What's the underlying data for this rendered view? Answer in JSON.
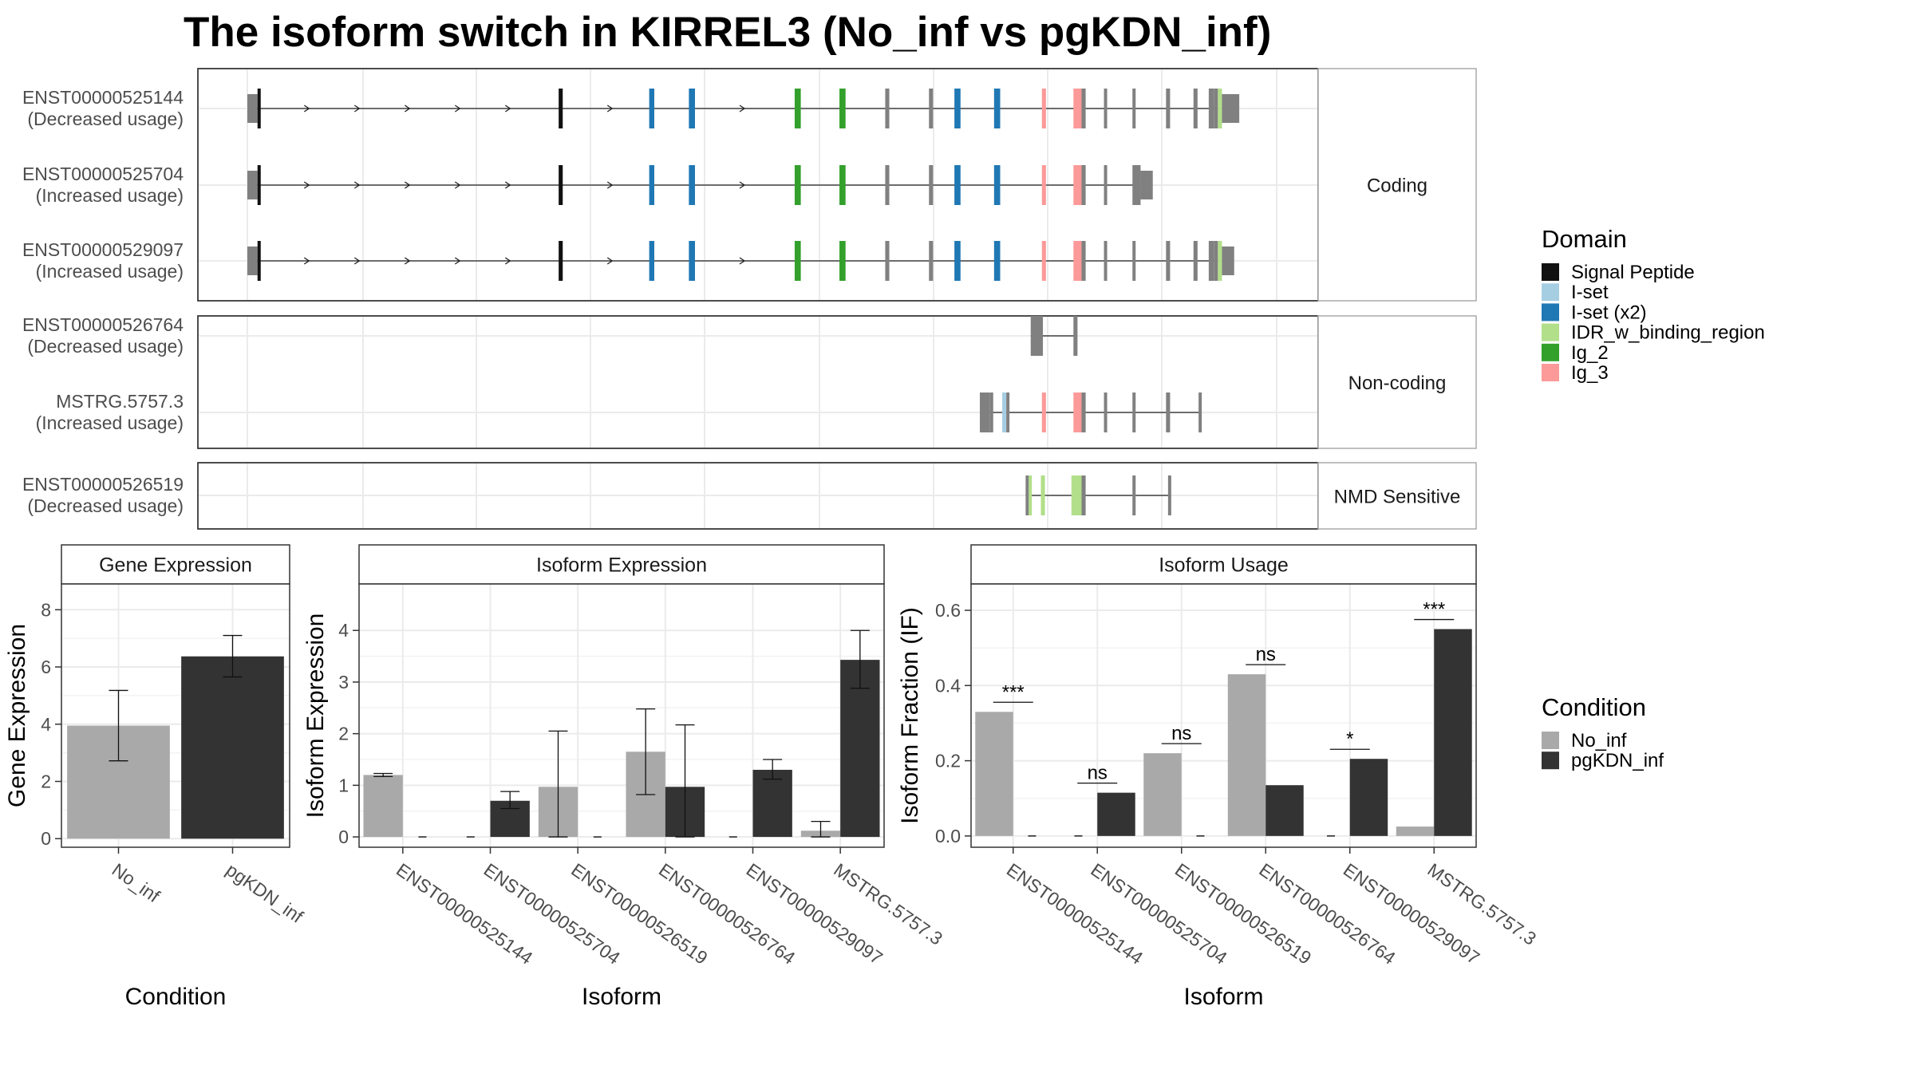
{
  "title": "The isoform switch in KIRREL3 (No_inf vs pgKDN_inf)",
  "colors": {
    "Signal Peptide": "#111111",
    "I-set": "#a6cee3",
    "I-set (x2)": "#1f78b4",
    "IDR_w_binding_region": "#b2df8a",
    "Ig_2": "#33a02c",
    "Ig_3": "#fb9a99",
    "exon": "#808080",
    "No_inf": "#a9a9a9",
    "pgKDN_inf": "#333333"
  },
  "legend_domain": {
    "title": "Domain",
    "entries": [
      "Signal Peptide",
      "I-set",
      "I-set (x2)",
      "IDR_w_binding_region",
      "Ig_2",
      "Ig_3"
    ]
  },
  "legend_condition": {
    "title": "Condition",
    "entries": [
      "No_inf",
      "pgKDN_inf"
    ]
  },
  "transcripts": {
    "groups": [
      {
        "label": "Coding",
        "tracks": [
          {
            "name": "ENST00000525144",
            "usage": "(Decreased usage)",
            "line": [
              0.005,
              0.97
            ],
            "exons": [
              {
                "s": 0.0,
                "e": 0.01,
                "t": "utr"
              },
              {
                "s": 0.01,
                "e": 0.012,
                "t": "Signal Peptide"
              },
              {
                "s": 0.306,
                "e": 0.31,
                "t": "Signal Peptide"
              },
              {
                "s": 0.395,
                "e": 0.4,
                "t": "I-set (x2)"
              },
              {
                "s": 0.434,
                "e": 0.44,
                "t": "I-set (x2)"
              },
              {
                "s": 0.538,
                "e": 0.544,
                "t": "Ig_2"
              },
              {
                "s": 0.582,
                "e": 0.588,
                "t": "Ig_2"
              },
              {
                "s": 0.627,
                "e": 0.631,
                "t": "exon"
              },
              {
                "s": 0.67,
                "e": 0.674,
                "t": "exon"
              },
              {
                "s": 0.695,
                "e": 0.701,
                "t": "I-set (x2)"
              },
              {
                "s": 0.734,
                "e": 0.74,
                "t": "I-set (x2)"
              },
              {
                "s": 0.781,
                "e": 0.785,
                "t": "Ig_3"
              },
              {
                "s": 0.812,
                "e": 0.82,
                "t": "Ig_3"
              },
              {
                "s": 0.82,
                "e": 0.824,
                "t": "exon"
              },
              {
                "s": 0.842,
                "e": 0.844,
                "t": "exon"
              },
              {
                "s": 0.87,
                "e": 0.873,
                "t": "exon"
              },
              {
                "s": 0.903,
                "e": 0.907,
                "t": "exon"
              },
              {
                "s": 0.93,
                "e": 0.934,
                "t": "exon"
              },
              {
                "s": 0.945,
                "e": 0.95,
                "t": "exon"
              },
              {
                "s": 0.95,
                "e": 0.954,
                "t": "exon"
              },
              {
                "s": 0.954,
                "e": 0.958,
                "t": "IDR_w_binding_region"
              },
              {
                "s": 0.958,
                "e": 0.975,
                "t": "utr"
              }
            ]
          },
          {
            "name": "ENST00000525704",
            "usage": "(Increased usage)",
            "line": [
              0.005,
              0.885
            ],
            "exons": [
              {
                "s": 0.0,
                "e": 0.01,
                "t": "utr"
              },
              {
                "s": 0.01,
                "e": 0.012,
                "t": "Signal Peptide"
              },
              {
                "s": 0.306,
                "e": 0.31,
                "t": "Signal Peptide"
              },
              {
                "s": 0.395,
                "e": 0.4,
                "t": "I-set (x2)"
              },
              {
                "s": 0.434,
                "e": 0.44,
                "t": "I-set (x2)"
              },
              {
                "s": 0.538,
                "e": 0.544,
                "t": "Ig_2"
              },
              {
                "s": 0.582,
                "e": 0.588,
                "t": "Ig_2"
              },
              {
                "s": 0.627,
                "e": 0.631,
                "t": "exon"
              },
              {
                "s": 0.67,
                "e": 0.674,
                "t": "exon"
              },
              {
                "s": 0.695,
                "e": 0.701,
                "t": "I-set (x2)"
              },
              {
                "s": 0.734,
                "e": 0.74,
                "t": "I-set (x2)"
              },
              {
                "s": 0.781,
                "e": 0.785,
                "t": "Ig_3"
              },
              {
                "s": 0.812,
                "e": 0.82,
                "t": "Ig_3"
              },
              {
                "s": 0.82,
                "e": 0.824,
                "t": "exon"
              },
              {
                "s": 0.842,
                "e": 0.844,
                "t": "exon"
              },
              {
                "s": 0.87,
                "e": 0.878,
                "t": "exon"
              },
              {
                "s": 0.878,
                "e": 0.89,
                "t": "utr"
              }
            ]
          },
          {
            "name": "ENST00000529097",
            "usage": "(Increased usage)",
            "line": [
              0.005,
              0.965
            ],
            "exons": [
              {
                "s": 0.0,
                "e": 0.01,
                "t": "utr"
              },
              {
                "s": 0.01,
                "e": 0.012,
                "t": "Signal Peptide"
              },
              {
                "s": 0.306,
                "e": 0.31,
                "t": "Signal Peptide"
              },
              {
                "s": 0.395,
                "e": 0.4,
                "t": "I-set (x2)"
              },
              {
                "s": 0.434,
                "e": 0.44,
                "t": "I-set (x2)"
              },
              {
                "s": 0.538,
                "e": 0.544,
                "t": "Ig_2"
              },
              {
                "s": 0.582,
                "e": 0.588,
                "t": "Ig_2"
              },
              {
                "s": 0.627,
                "e": 0.631,
                "t": "exon"
              },
              {
                "s": 0.67,
                "e": 0.674,
                "t": "exon"
              },
              {
                "s": 0.695,
                "e": 0.701,
                "t": "I-set (x2)"
              },
              {
                "s": 0.734,
                "e": 0.74,
                "t": "I-set (x2)"
              },
              {
                "s": 0.781,
                "e": 0.785,
                "t": "Ig_3"
              },
              {
                "s": 0.812,
                "e": 0.82,
                "t": "Ig_3"
              },
              {
                "s": 0.82,
                "e": 0.824,
                "t": "exon"
              },
              {
                "s": 0.842,
                "e": 0.844,
                "t": "exon"
              },
              {
                "s": 0.87,
                "e": 0.873,
                "t": "exon"
              },
              {
                "s": 0.903,
                "e": 0.907,
                "t": "exon"
              },
              {
                "s": 0.93,
                "e": 0.934,
                "t": "exon"
              },
              {
                "s": 0.945,
                "e": 0.95,
                "t": "exon"
              },
              {
                "s": 0.95,
                "e": 0.954,
                "t": "exon"
              },
              {
                "s": 0.954,
                "e": 0.958,
                "t": "IDR_w_binding_region"
              },
              {
                "s": 0.958,
                "e": 0.97,
                "t": "utr"
              }
            ]
          }
        ]
      },
      {
        "label": "Non-coding",
        "tracks": [
          {
            "name": "ENST00000526764",
            "usage": "(Decreased usage)",
            "line": [
              0.77,
              0.815
            ],
            "exons": [
              {
                "s": 0.77,
                "e": 0.782,
                "t": "exon"
              },
              {
                "s": 0.812,
                "e": 0.816,
                "t": "exon"
              }
            ]
          },
          {
            "name": "MSTRG.5757.3",
            "usage": "(Increased usage)",
            "line": [
              0.72,
              0.938
            ],
            "exons": [
              {
                "s": 0.72,
                "e": 0.73,
                "t": "exon"
              },
              {
                "s": 0.73,
                "e": 0.732,
                "t": "exon"
              },
              {
                "s": 0.742,
                "e": 0.746,
                "t": "I-set"
              },
              {
                "s": 0.746,
                "e": 0.748,
                "t": "exon"
              },
              {
                "s": 0.781,
                "e": 0.785,
                "t": "Ig_3"
              },
              {
                "s": 0.812,
                "e": 0.82,
                "t": "Ig_3"
              },
              {
                "s": 0.82,
                "e": 0.824,
                "t": "exon"
              },
              {
                "s": 0.842,
                "e": 0.844,
                "t": "exon"
              },
              {
                "s": 0.87,
                "e": 0.873,
                "t": "exon"
              },
              {
                "s": 0.903,
                "e": 0.907,
                "t": "exon"
              },
              {
                "s": 0.935,
                "e": 0.938,
                "t": "exon"
              }
            ]
          }
        ]
      },
      {
        "label": "NMD Sensitive",
        "tracks": [
          {
            "name": "ENST00000526519",
            "usage": "(Decreased usage)",
            "line": [
              0.765,
              0.908
            ],
            "exons": [
              {
                "s": 0.765,
                "e": 0.768,
                "t": "exon"
              },
              {
                "s": 0.768,
                "e": 0.771,
                "t": "IDR_w_binding_region"
              },
              {
                "s": 0.78,
                "e": 0.784,
                "t": "IDR_w_binding_region"
              },
              {
                "s": 0.81,
                "e": 0.82,
                "t": "IDR_w_binding_region"
              },
              {
                "s": 0.82,
                "e": 0.824,
                "t": "exon"
              },
              {
                "s": 0.87,
                "e": 0.873,
                "t": "exon"
              },
              {
                "s": 0.905,
                "e": 0.908,
                "t": "exon"
              }
            ]
          }
        ]
      }
    ]
  },
  "chart_data": [
    {
      "type": "bar",
      "title": "Gene Expression",
      "xlabel": "Condition",
      "ylabel": "Gene Expression",
      "categories": [
        "No_inf",
        "pgKDN_inf"
      ],
      "values": [
        3.95,
        6.37
      ],
      "errors": [
        [
          2.72,
          5.18
        ],
        [
          5.65,
          7.1
        ]
      ],
      "ylim": [
        -0.3,
        8.9
      ],
      "yticks": [
        0,
        2,
        4,
        6,
        8
      ]
    },
    {
      "type": "bar",
      "title": "Isoform Expression",
      "xlabel": "Isoform",
      "ylabel": "Isoform Expression",
      "categories": [
        "ENST00000525144",
        "ENST00000525704",
        "ENST00000526519",
        "ENST00000526764",
        "ENST00000529097",
        "MSTRG.5757.3"
      ],
      "series": [
        {
          "name": "No_inf",
          "values": [
            1.2,
            0.0,
            0.97,
            1.65,
            0.0,
            0.12
          ],
          "errors": [
            [
              1.17,
              1.23
            ],
            null,
            [
              0.0,
              2.05
            ],
            [
              0.82,
              2.48
            ],
            null,
            [
              0.0,
              0.3
            ]
          ]
        },
        {
          "name": "pgKDN_inf",
          "values": [
            0.0,
            0.7,
            0.0,
            0.97,
            1.3,
            3.43
          ],
          "errors": [
            null,
            [
              0.55,
              0.88
            ],
            null,
            [
              0.0,
              2.17
            ],
            [
              1.12,
              1.5
            ],
            [
              2.88,
              4.0
            ]
          ]
        }
      ],
      "ylim": [
        -0.2,
        4.9
      ],
      "yticks": [
        0,
        1,
        2,
        3,
        4
      ]
    },
    {
      "type": "bar",
      "title": "Isoform Usage",
      "xlabel": "Isoform",
      "ylabel": "Isoform Fraction (IF)",
      "categories": [
        "ENST00000525144",
        "ENST00000525704",
        "ENST00000526519",
        "ENST00000526764",
        "ENST00000529097",
        "MSTRG.5757.3"
      ],
      "series": [
        {
          "name": "No_inf",
          "values": [
            0.33,
            0.0,
            0.22,
            0.43,
            0.0,
            0.025
          ]
        },
        {
          "name": "pgKDN_inf",
          "values": [
            0.0,
            0.115,
            0.0,
            0.135,
            0.205,
            0.55
          ]
        }
      ],
      "significance": [
        "***",
        "ns",
        "ns",
        "ns",
        "*",
        "***"
      ],
      "ylim": [
        -0.03,
        0.67
      ],
      "yticks": [
        0.0,
        0.2,
        0.4,
        0.6
      ],
      "ytick_labels": [
        "0.0",
        "0.2",
        "0.4",
        "0.6"
      ]
    }
  ]
}
